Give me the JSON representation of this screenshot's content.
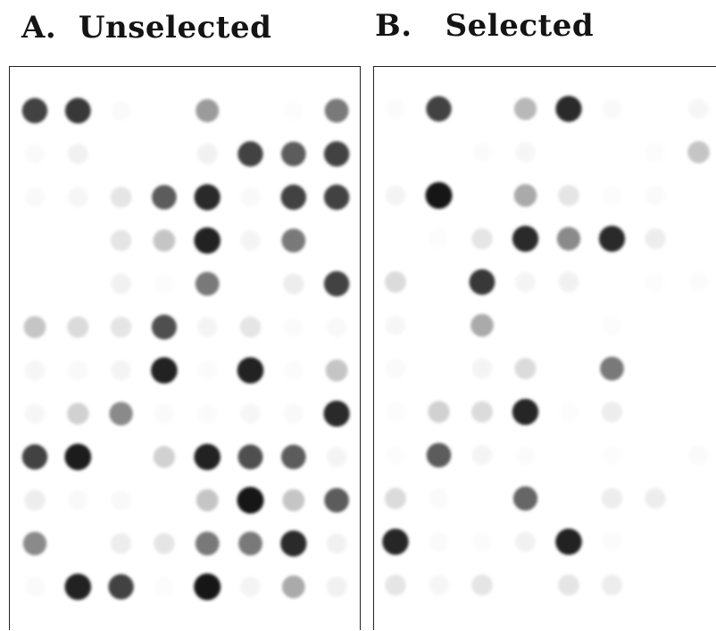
{
  "panels": [
    {
      "label_letter": "A.",
      "label_text": "Unselected",
      "grid_rows": 12,
      "grid_cols": 8,
      "spot_intensity": [
        [
          0.8,
          0.85,
          0.05,
          0.0,
          0.5,
          0.0,
          0.03,
          0.6
        ],
        [
          0.05,
          0.12,
          0.0,
          0.0,
          0.12,
          0.8,
          0.7,
          0.8
        ],
        [
          0.06,
          0.08,
          0.2,
          0.7,
          0.9,
          0.06,
          0.8,
          0.8
        ],
        [
          0.0,
          0.0,
          0.2,
          0.35,
          0.95,
          0.1,
          0.6,
          0.0
        ],
        [
          0.0,
          0.0,
          0.12,
          0.03,
          0.6,
          0.0,
          0.15,
          0.8
        ],
        [
          0.35,
          0.25,
          0.2,
          0.75,
          0.1,
          0.2,
          0.04,
          0.06
        ],
        [
          0.08,
          0.06,
          0.1,
          0.95,
          0.04,
          0.95,
          0.04,
          0.35
        ],
        [
          0.08,
          0.3,
          0.55,
          0.05,
          0.04,
          0.08,
          0.06,
          0.9
        ],
        [
          0.8,
          0.97,
          0.0,
          0.3,
          0.95,
          0.75,
          0.7,
          0.1
        ],
        [
          0.15,
          0.06,
          0.06,
          0.0,
          0.35,
          1.0,
          0.35,
          0.7
        ],
        [
          0.55,
          0.0,
          0.15,
          0.2,
          0.6,
          0.6,
          0.9,
          0.12
        ],
        [
          0.05,
          0.95,
          0.8,
          0.03,
          1.0,
          0.1,
          0.45,
          0.12
        ]
      ]
    },
    {
      "label_letter": "B.",
      "label_text": "Selected",
      "grid_rows": 12,
      "grid_cols": 8,
      "spot_intensity": [
        [
          0.04,
          0.8,
          0.0,
          0.4,
          0.9,
          0.06,
          0.0,
          0.08
        ],
        [
          0.0,
          0.0,
          0.04,
          0.08,
          0.0,
          0.0,
          0.03,
          0.35
        ],
        [
          0.1,
          1.0,
          0.0,
          0.45,
          0.2,
          0.03,
          0.05,
          0.0
        ],
        [
          0.0,
          0.03,
          0.2,
          0.9,
          0.55,
          0.9,
          0.15,
          0.0
        ],
        [
          0.25,
          0.0,
          0.85,
          0.1,
          0.12,
          0.0,
          0.03,
          0.04
        ],
        [
          0.08,
          0.0,
          0.45,
          0.0,
          0.0,
          0.03,
          0.0,
          0.0
        ],
        [
          0.05,
          0.0,
          0.1,
          0.25,
          0.0,
          0.6,
          0.0,
          0.0
        ],
        [
          0.03,
          0.3,
          0.25,
          0.92,
          0.03,
          0.15,
          0.0,
          0.0
        ],
        [
          0.03,
          0.7,
          0.1,
          0.04,
          0.0,
          0.03,
          0.0,
          0.05
        ],
        [
          0.25,
          0.05,
          0.0,
          0.65,
          0.0,
          0.15,
          0.15,
          0.0
        ],
        [
          0.92,
          0.05,
          0.04,
          0.12,
          0.95,
          0.04,
          0.0,
          0.0
        ],
        [
          0.2,
          0.08,
          0.2,
          0.0,
          0.2,
          0.15,
          0.0,
          0.0
        ]
      ]
    }
  ],
  "colors": {
    "spot_dark": "#141414",
    "background": "#ffffff",
    "border": "#222222"
  }
}
